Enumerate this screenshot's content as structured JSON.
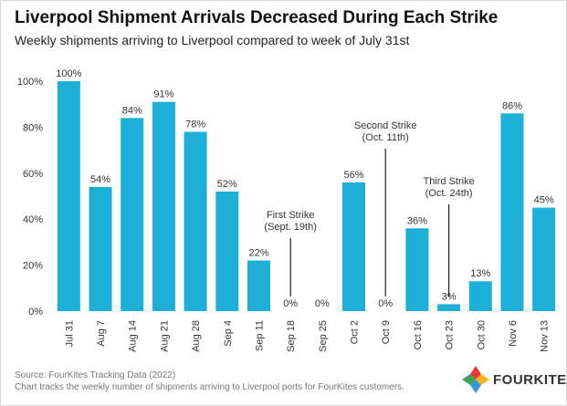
{
  "header": {
    "title": "Liverpool Shipment Arrivals Decreased During Each Strike",
    "subtitle": "Weekly shipments arriving to Liverpool compared to week of July 31st"
  },
  "footer": {
    "source": "Source: FourKites Tracking Data (2022)",
    "note": "Chart tracks the weekly number of shipments arriving to Liverpool ports for FourKites customers.",
    "brand": "FOURKITES"
  },
  "colors": {
    "bar": "#1cb0d8",
    "text": "#222222",
    "logo": [
      "#e53a3a",
      "#f5b41f",
      "#2e9bd6",
      "#3aa657"
    ]
  },
  "chart_data": {
    "type": "bar",
    "title": "Liverpool Shipment Arrivals Decreased During Each Strike",
    "subtitle": "Weekly shipments arriving to Liverpool compared to week of July 31st",
    "categories": [
      "Jul 31",
      "Aug 7",
      "Aug 14",
      "Aug 21",
      "Aug 28",
      "Sep 4",
      "Sep 11",
      "Sep 18",
      "Sep 25",
      "Oct 2",
      "Oct 9",
      "Oct 16",
      "Oct 23",
      "Oct 30",
      "Nov 6",
      "Nov 13"
    ],
    "values": [
      100,
      54,
      84,
      91,
      78,
      52,
      22,
      0,
      0,
      56,
      0,
      36,
      3,
      13,
      86,
      45
    ],
    "data_labels": [
      "100%",
      "54%",
      "84%",
      "91%",
      "78%",
      "52%",
      "22%",
      "0%",
      "0%",
      "56%",
      "0%",
      "36%",
      "3%",
      "13%",
      "86%",
      "45%"
    ],
    "ylim": [
      0,
      100
    ],
    "yticks": [
      0,
      20,
      40,
      60,
      80,
      100
    ],
    "ytick_labels": [
      "0%",
      "20%",
      "40%",
      "60%",
      "80%",
      "100%"
    ],
    "xlabel": "",
    "ylabel": "",
    "grid": false,
    "annotations": [
      {
        "lines": [
          "First Strike",
          "(Sept. 19th)"
        ],
        "category": "Sep 18"
      },
      {
        "lines": [
          "Second Strike",
          "(Oct. 11th)"
        ],
        "category": "Oct 9"
      },
      {
        "lines": [
          "Third Strike",
          "(Oct. 24th)"
        ],
        "category": "Oct 23"
      }
    ]
  }
}
